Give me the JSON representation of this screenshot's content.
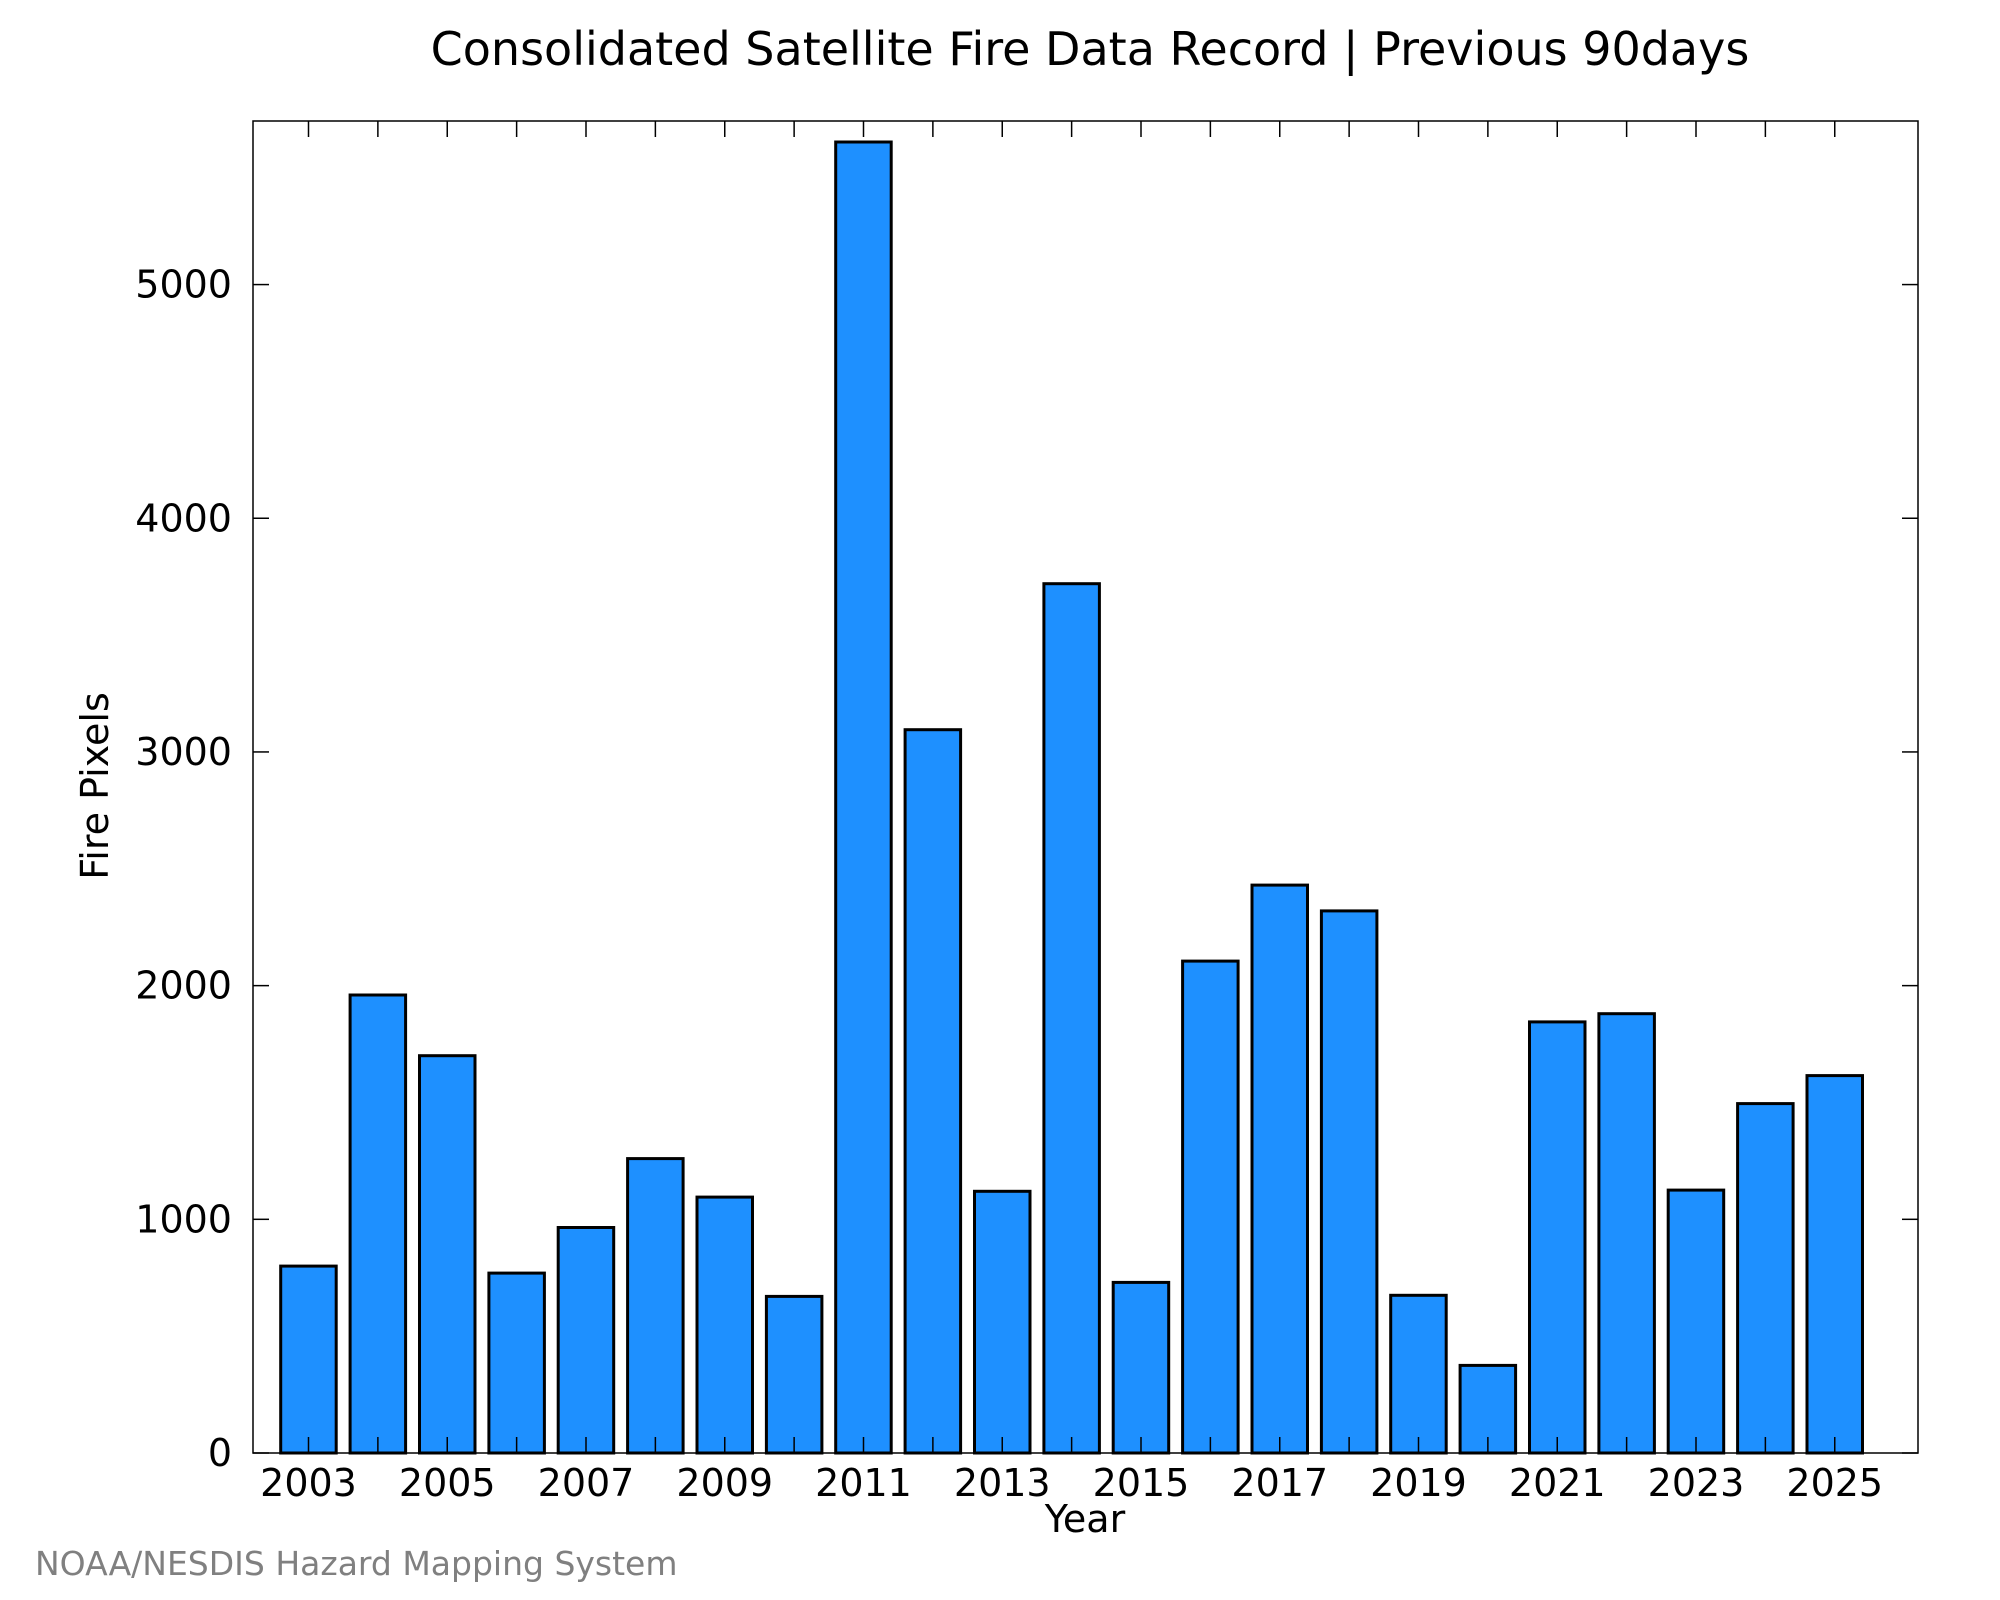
{
  "credit": "NOAA/NESDIS Hazard Mapping System",
  "colors": {
    "bar_fill": "#1E90FF",
    "bar_stroke": "#000000",
    "credit_text": "#808080"
  },
  "chart_data": {
    "type": "bar",
    "title": "Consolidated Satellite Fire Data Record | Previous 90days",
    "xlabel": "Year",
    "ylabel": "Fire Pixels",
    "categories": [
      2003,
      2004,
      2005,
      2006,
      2007,
      2008,
      2009,
      2010,
      2011,
      2012,
      2013,
      2014,
      2015,
      2016,
      2017,
      2018,
      2019,
      2020,
      2021,
      2022,
      2023,
      2024,
      2025
    ],
    "values": [
      800,
      1960,
      1700,
      770,
      965,
      1260,
      1095,
      670,
      5610,
      3095,
      1120,
      3720,
      730,
      2105,
      2430,
      2320,
      675,
      375,
      1845,
      1880,
      1125,
      1495,
      1615
    ],
    "xlim": [
      2002.2,
      2026.2
    ],
    "ylim": [
      0,
      5700
    ],
    "yticks": [
      0,
      1000,
      2000,
      3000,
      4000,
      5000
    ],
    "xticks_labeled": [
      2003,
      2005,
      2007,
      2009,
      2011,
      2013,
      2015,
      2017,
      2019,
      2021,
      2023,
      2025
    ],
    "xticks_minor": [
      2004,
      2006,
      2008,
      2010,
      2012,
      2014,
      2016,
      2018,
      2020,
      2022,
      2024
    ],
    "grid": false,
    "legend": "none"
  }
}
